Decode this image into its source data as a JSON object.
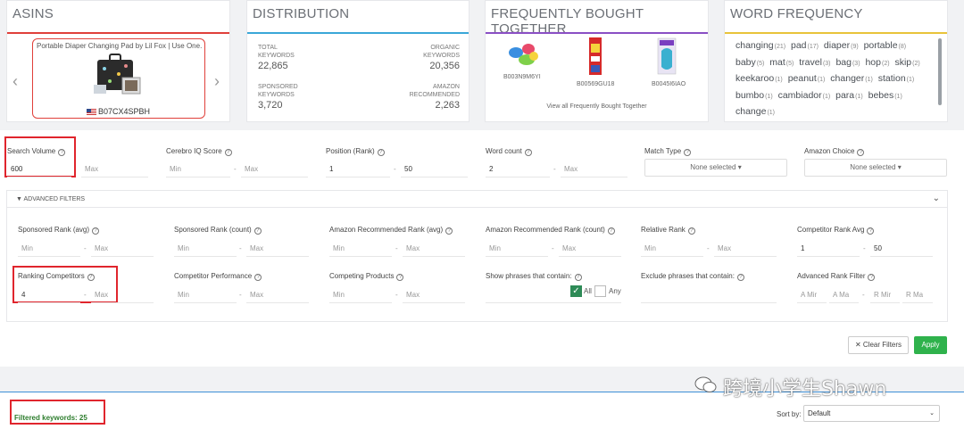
{
  "cards": {
    "asins": {
      "title": "ASINS",
      "product_name": "Portable Diaper Changing Pad by Lil Fox | Use One...",
      "asin": "B07CX4SPBH",
      "prev": "‹",
      "next": "›",
      "accent": "#e0403a"
    },
    "distribution": {
      "title": "DISTRIBUTION",
      "total_label": "TOTAL KEYWORDS",
      "total": "22,865",
      "organic_label": "ORGANIC KEYWORDS",
      "organic": "20,356",
      "sponsored_label": "SPONSORED KEYWORDS",
      "sponsored": "3,720",
      "recommended_label": "AMAZON RECOMMENDED",
      "recommended": "2,263",
      "accent": "#3aa7d8"
    },
    "fbt": {
      "title": "FREQUENTLY BOUGHT TOGETHER",
      "items": [
        "B003N9M6YI",
        "B00569GU18",
        "B0045I6IAO"
      ],
      "link": "View all Frequently Bought Together",
      "accent": "#8a4fc4"
    },
    "word_frequency": {
      "title": "WORD FREQUENCY",
      "accent": "#e8c33a",
      "words": [
        {
          "w": "changing",
          "n": "(21)"
        },
        {
          "w": "pad",
          "n": "(17)"
        },
        {
          "w": "diaper",
          "n": "(9)"
        },
        {
          "w": "portable",
          "n": "(8)"
        },
        {
          "w": "baby",
          "n": "(5)"
        },
        {
          "w": "mat",
          "n": "(5)"
        },
        {
          "w": "travel",
          "n": "(3)"
        },
        {
          "w": "bag",
          "n": "(3)"
        },
        {
          "w": "hop",
          "n": "(2)"
        },
        {
          "w": "skip",
          "n": "(2)"
        },
        {
          "w": "keekaroo",
          "n": "(1)"
        },
        {
          "w": "peanut",
          "n": "(1)"
        },
        {
          "w": "changer",
          "n": "(1)"
        },
        {
          "w": "station",
          "n": "(1)"
        },
        {
          "w": "bumbo",
          "n": "(1)"
        },
        {
          "w": "cambiador",
          "n": "(1)"
        },
        {
          "w": "para",
          "n": "(1)"
        },
        {
          "w": "bebes",
          "n": "(1)"
        },
        {
          "w": "change",
          "n": "(1)"
        }
      ]
    }
  },
  "filters": {
    "search_volume": {
      "label": "Search Volume",
      "min": "600",
      "max_ph": "Max"
    },
    "cerebro_iq": {
      "label": "Cerebro IQ Score",
      "min_ph": "Min",
      "max_ph": "Max"
    },
    "position_rank": {
      "label": "Position (Rank)",
      "min": "1",
      "max": "50"
    },
    "word_count": {
      "label": "Word count",
      "min": "2",
      "max_ph": "Max"
    },
    "match_type": {
      "label": "Match Type",
      "value": "None selected"
    },
    "amazon_choice": {
      "label": "Amazon Choice",
      "value": "None selected"
    },
    "dash": "-"
  },
  "advanced": {
    "title": "ADVANCED FILTERS",
    "sponsored_rank_avg": {
      "label": "Sponsored Rank (avg)",
      "min_ph": "Min",
      "max_ph": "Max"
    },
    "sponsored_rank_count": {
      "label": "Sponsored Rank (count)",
      "min_ph": "Min",
      "max_ph": "Max"
    },
    "amz_rec_rank_avg": {
      "label": "Amazon Recommended Rank (avg)",
      "min_ph": "Min",
      "max_ph": "Max"
    },
    "amz_rec_rank_count": {
      "label": "Amazon Recommended Rank (count)",
      "min_ph": "Min",
      "max_ph": "Max"
    },
    "relative_rank": {
      "label": "Relative Rank",
      "min_ph": "Min",
      "max_ph": "Max"
    },
    "competitor_rank_avg": {
      "label": "Competitor Rank Avg",
      "min": "1",
      "max": "50"
    },
    "ranking_competitors": {
      "label": "Ranking Competitors",
      "min": "4",
      "max_ph": "Max"
    },
    "competitor_performance": {
      "label": "Competitor Performance",
      "min_ph": "Min",
      "max_ph": "Max"
    },
    "competing_products": {
      "label": "Competing Products",
      "min_ph": "Min",
      "max_ph": "Max"
    },
    "show_phrases": {
      "label": "Show phrases that contain:",
      "all": "All",
      "any": "Any"
    },
    "exclude_phrases": {
      "label": "Exclude phrases that contain:"
    },
    "advanced_rank": {
      "label": "Advanced Rank Filter",
      "a_min": "A Mir",
      "a_max": "A Ma",
      "r_min": "R Mir",
      "r_max": "R Ma"
    }
  },
  "actions": {
    "clear": "Clear Filters",
    "apply": "Apply"
  },
  "results": {
    "filtered": "Filtered keywords: 25",
    "sort_label": "Sort by:",
    "sort_value": "Default"
  },
  "watermark": "跨境小学生Shawn"
}
